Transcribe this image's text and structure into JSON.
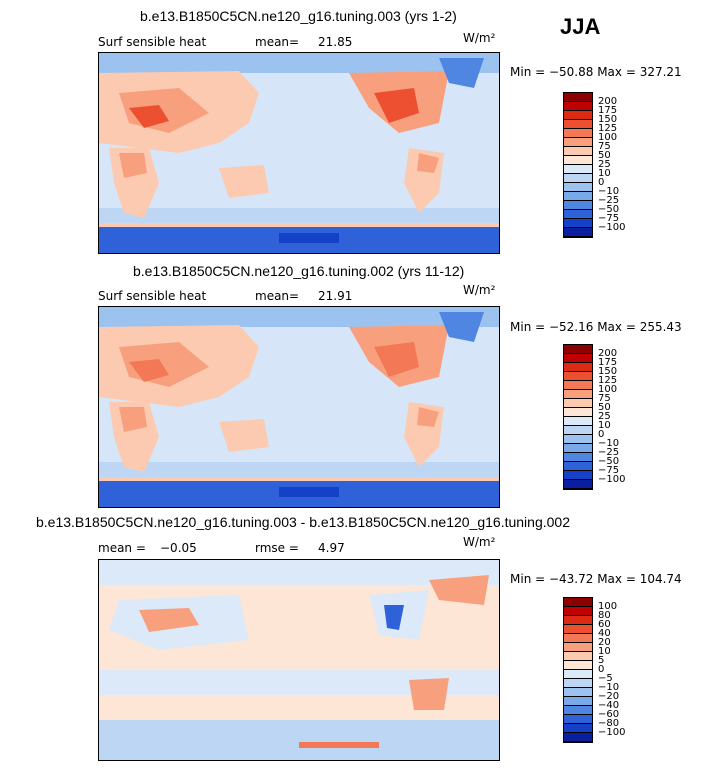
{
  "season": "JJA",
  "palette_main": [
    "#8c0000",
    "#c00000",
    "#dc2a14",
    "#ec5030",
    "#f37856",
    "#f8a07e",
    "#fccab0",
    "#fde6d6",
    "#dce9f8",
    "#bcd6f4",
    "#9cc2f0",
    "#7aa9ea",
    "#4f86e2",
    "#2f61d8",
    "#1540c8",
    "#0a1ea0"
  ],
  "palette_diff": [
    "#8c0000",
    "#c00000",
    "#dc2a14",
    "#ec5030",
    "#f37856",
    "#f8a07e",
    "#fccab0",
    "#fde6d6",
    "#dce9f8",
    "#bcd6f4",
    "#9cc2f0",
    "#7aa9ea",
    "#4f86e2",
    "#2f61d8",
    "#1540c8",
    "#0a1ea0"
  ],
  "panels": [
    {
      "title": "b.e13.B1850C5CN.ne120_g16.tuning.003 (yrs 1-2)",
      "variable": "Surf sensible heat",
      "stat_label": "mean=",
      "stat_value": "21.85",
      "units": "W/m²",
      "minmax": "Min = −50.88 Max = 327.21",
      "colorbar_labels": [
        "200",
        "175",
        "150",
        "125",
        "100",
        "75",
        "50",
        "25",
        "10",
        "0",
        "−10",
        "−25",
        "−50",
        "−75",
        "−100"
      ]
    },
    {
      "title": "b.e13.B1850C5CN.ne120_g16.tuning.002 (yrs 11-12)",
      "variable": "Surf sensible heat",
      "stat_label": "mean=",
      "stat_value": "21.91",
      "units": "W/m²",
      "minmax": "Min = −52.16 Max = 255.43",
      "colorbar_labels": [
        "200",
        "175",
        "150",
        "125",
        "100",
        "75",
        "50",
        "25",
        "10",
        "0",
        "−10",
        "−25",
        "−50",
        "−75",
        "−100"
      ]
    },
    {
      "title": "b.e13.B1850C5CN.ne120_g16.tuning.003 - b.e13.B1850C5CN.ne120_g16.tuning.002",
      "variable": "mean =",
      "stat_label": "−0.05",
      "rmse_label": "rmse =",
      "rmse_value": "4.97",
      "units": "W/m²",
      "minmax": "Min = −43.72 Max = 104.74",
      "colorbar_labels": [
        "100",
        "80",
        "60",
        "40",
        "20",
        "10",
        "5",
        "0",
        "−5",
        "−10",
        "−20",
        "−40",
        "−60",
        "−80",
        "−100"
      ]
    }
  ]
}
